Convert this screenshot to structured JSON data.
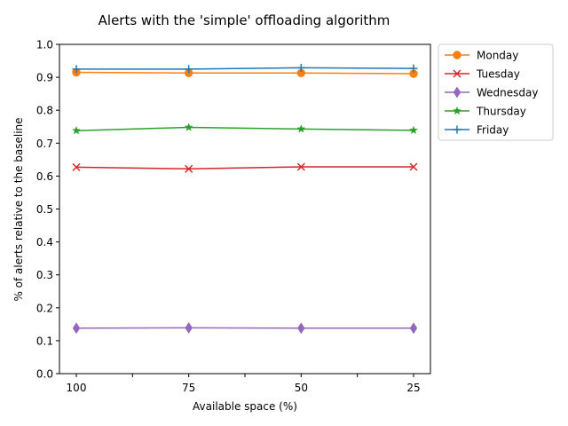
{
  "chart_data": {
    "type": "line",
    "title": "Alerts with the 'simple' offloading algorithm",
    "xlabel": "Available space (%)",
    "ylabel": "% of alerts relative to the baseline",
    "categories": [
      "100",
      "75",
      "50",
      "25"
    ],
    "ylim": [
      0,
      1.0
    ],
    "yticks": [
      "0.0",
      "0.1",
      "0.2",
      "0.3",
      "0.4",
      "0.5",
      "0.6",
      "0.7",
      "0.8",
      "0.9",
      "1.0"
    ],
    "grid": false,
    "legend_position": "outside-top-right",
    "series": [
      {
        "name": "Monday",
        "color": "#ff7f0e",
        "marker": "circle",
        "values": [
          0.915,
          0.913,
          0.913,
          0.911
        ]
      },
      {
        "name": "Tuesday",
        "color": "#d62728",
        "marker": "x",
        "values": [
          0.627,
          0.622,
          0.628,
          0.628
        ]
      },
      {
        "name": "Wednesday",
        "color": "#9467bd",
        "marker": "diamond",
        "values": [
          0.138,
          0.139,
          0.138,
          0.138
        ]
      },
      {
        "name": "Thursday",
        "color": "#2ca02c",
        "marker": "star",
        "values": [
          0.738,
          0.748,
          0.743,
          0.739
        ]
      },
      {
        "name": "Friday",
        "color": "#1f77b4",
        "marker": "plus",
        "values": [
          0.925,
          0.925,
          0.929,
          0.927
        ]
      }
    ]
  }
}
